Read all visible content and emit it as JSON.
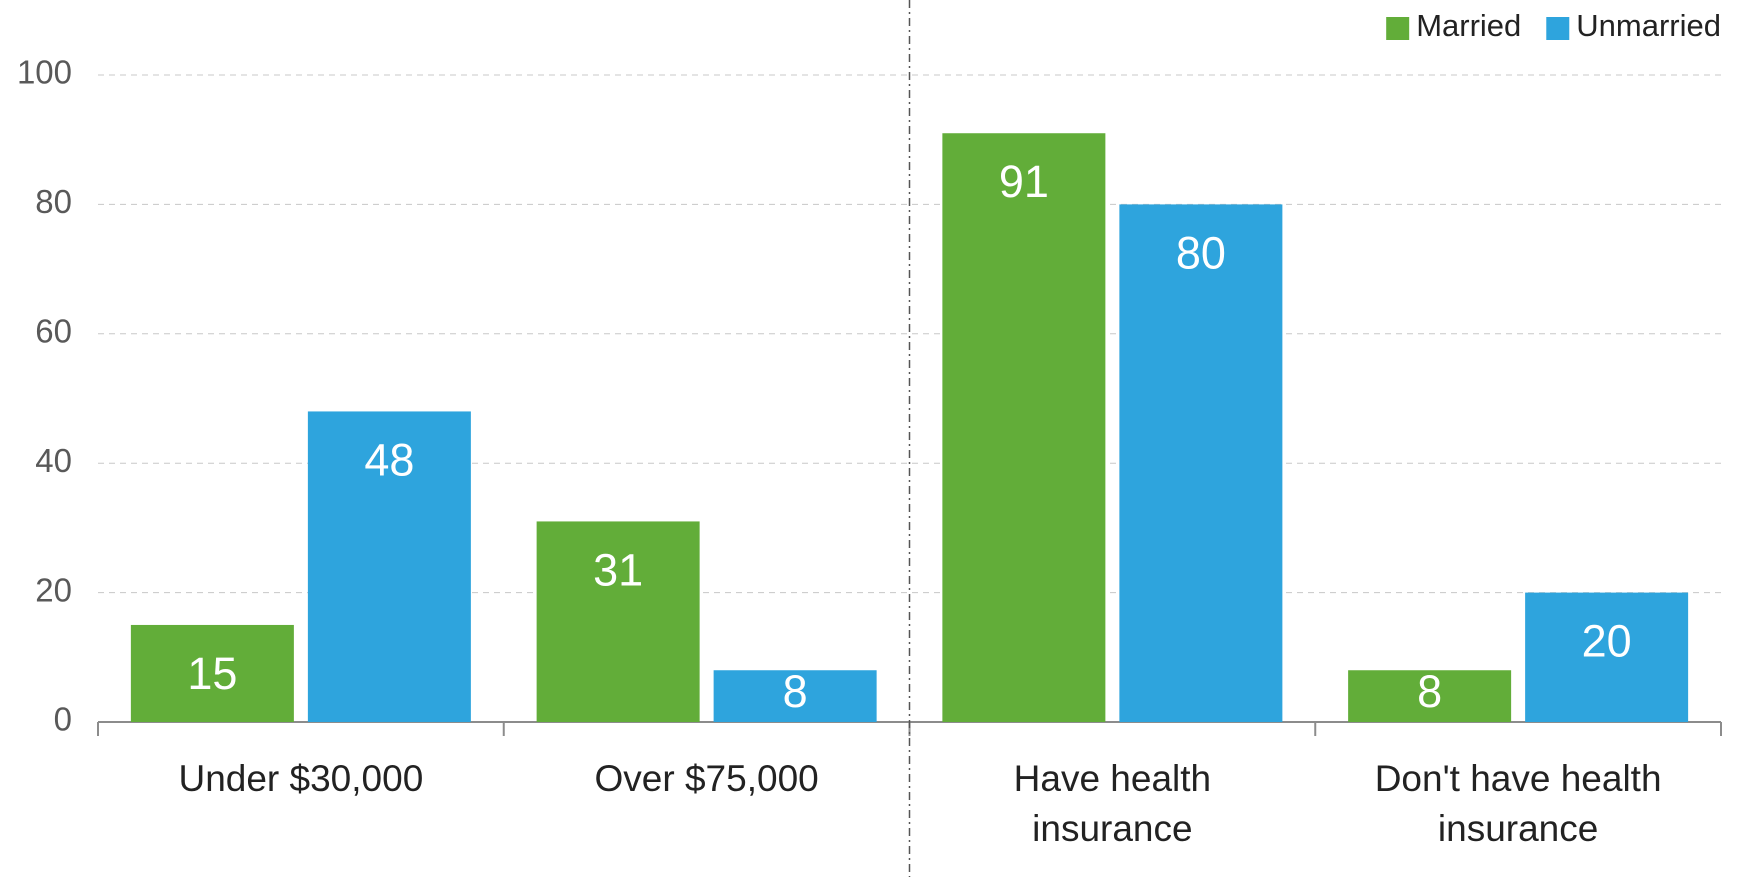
{
  "chart_data": {
    "type": "bar",
    "categories": [
      "Under $30,000",
      "Over $75,000",
      "Have health insurance",
      "Don't have health insurance"
    ],
    "series": [
      {
        "name": "Married",
        "color": "#62ad39",
        "values": [
          15,
          31,
          91,
          8
        ]
      },
      {
        "name": "Unmarried",
        "color": "#2ea4dd",
        "values": [
          48,
          8,
          80,
          20
        ]
      }
    ],
    "ylim": [
      0,
      100
    ],
    "yticks": [
      0,
      20,
      40,
      60,
      80,
      100
    ],
    "grid": true,
    "legend": "top-right"
  }
}
